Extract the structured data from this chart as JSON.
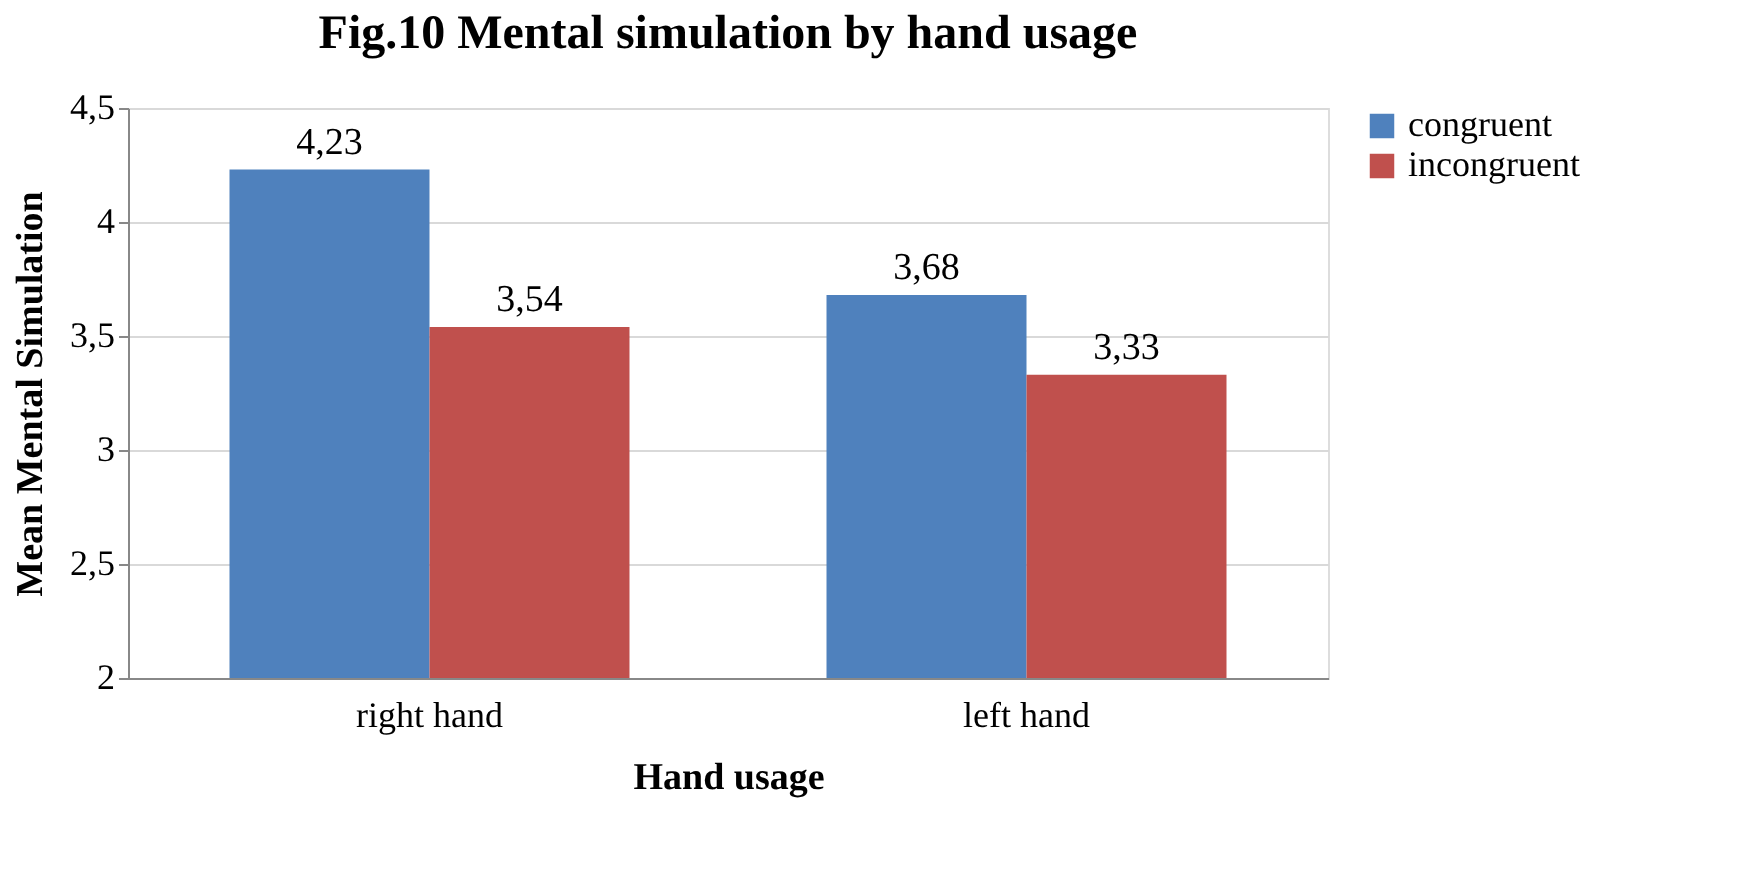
{
  "chart_data": {
    "type": "bar",
    "title": "Fig.10 Mental simulation by hand usage",
    "xlabel": "Hand usage",
    "ylabel": "Mean Mental Simulation",
    "categories": [
      "right hand",
      "left hand"
    ],
    "series": [
      {
        "name": "congruent",
        "color": "#4f81bd",
        "values": [
          4.23,
          3.68
        ],
        "value_labels": [
          "4,23",
          "3,68"
        ]
      },
      {
        "name": "incongruent",
        "color": "#c0504d",
        "values": [
          3.54,
          3.33
        ],
        "value_labels": [
          "3,54",
          "3,33"
        ]
      }
    ],
    "ylim": [
      2,
      4.5
    ],
    "yticks": [
      {
        "value": 2,
        "label": "2"
      },
      {
        "value": 2.5,
        "label": "2,5"
      },
      {
        "value": 3,
        "label": "3"
      },
      {
        "value": 3.5,
        "label": "3,5"
      },
      {
        "value": 4,
        "label": "4"
      },
      {
        "value": 4.5,
        "label": "4,5"
      }
    ],
    "grid": "y",
    "legend": "right"
  }
}
